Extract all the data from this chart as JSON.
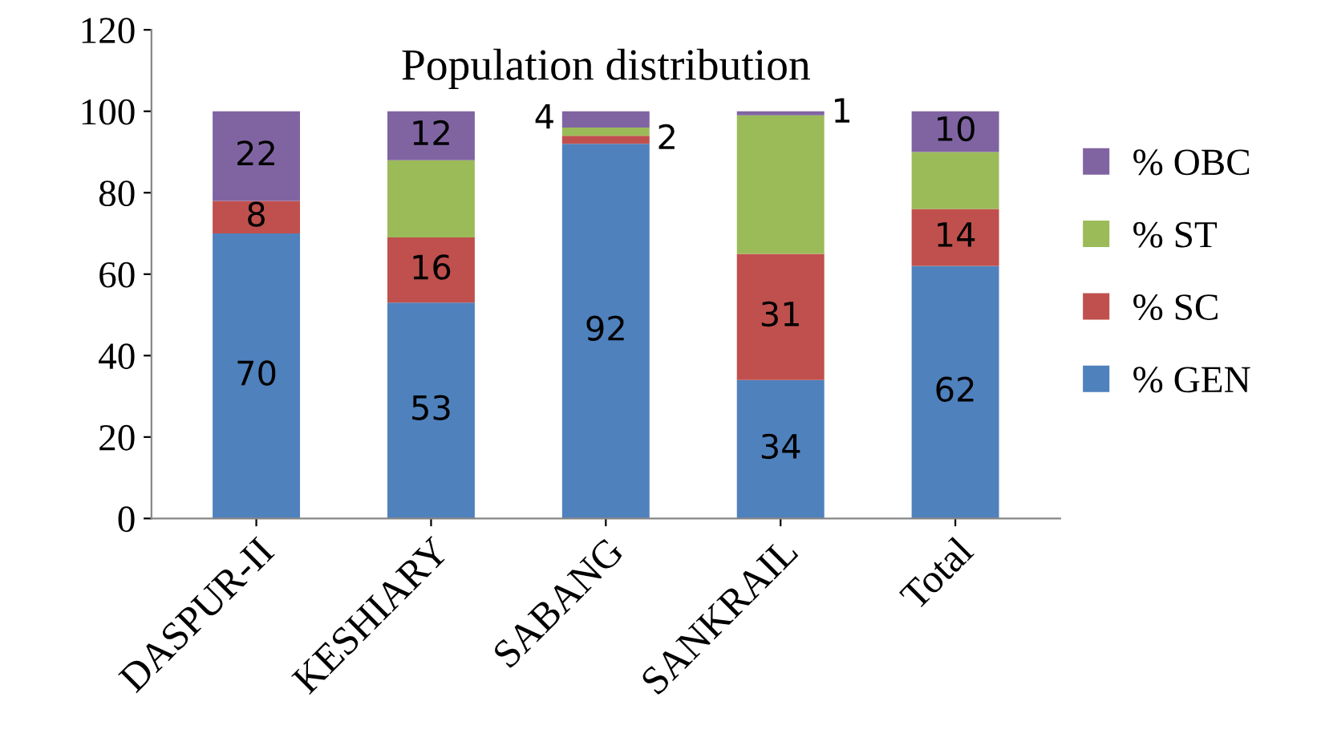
{
  "chart_data": {
    "type": "bar",
    "stacked": true,
    "title": "Population distribution",
    "categories": [
      "DASPUR-II",
      "KESHIARY",
      "SABANG",
      "SANKRAIL",
      "Total"
    ],
    "series": [
      {
        "name": "% GEN",
        "color": "#4f81bd",
        "values": [
          70,
          53,
          92,
          34,
          62
        ],
        "value_labels": [
          "70",
          "53",
          "92",
          "34",
          "62"
        ]
      },
      {
        "name": "% SC",
        "color": "#c0504d",
        "values": [
          8,
          16,
          2,
          31,
          14
        ],
        "value_labels": [
          "8",
          "16",
          "2",
          "31",
          "14"
        ]
      },
      {
        "name": "% ST",
        "color": "#9bbb59",
        "values": [
          0,
          19,
          2,
          34,
          14
        ],
        "value_labels": [
          null,
          null,
          null,
          null,
          null
        ]
      },
      {
        "name": "% OBC",
        "color": "#8064a2",
        "values": [
          22,
          12,
          4,
          1,
          10
        ],
        "value_labels": [
          "22",
          "12",
          "4",
          "1",
          "10"
        ]
      }
    ],
    "ylim": [
      0,
      120
    ],
    "yticks": [
      0,
      20,
      40,
      60,
      80,
      100,
      120
    ],
    "grid": false,
    "legend": "right"
  }
}
